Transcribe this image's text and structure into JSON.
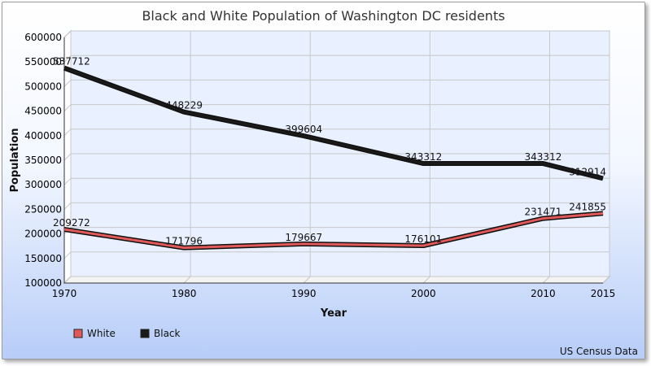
{
  "chart_data": {
    "type": "line",
    "title": "Black and White Population of Washington DC residents",
    "xlabel": "Year",
    "ylabel": "Population",
    "credits": "US Census Data",
    "x": [
      1970,
      1980,
      1990,
      2000,
      2010,
      2015
    ],
    "xlim": [
      1970,
      2015
    ],
    "ylim": [
      100000,
      600000
    ],
    "yticks": [
      100000,
      150000,
      200000,
      250000,
      300000,
      350000,
      400000,
      450000,
      500000,
      550000,
      600000
    ],
    "grid": true,
    "legend": "bottom-left",
    "series": [
      {
        "name": "White",
        "color": "#e05a5a",
        "values": [
          209272,
          171796,
          179667,
          176101,
          231471,
          241855
        ]
      },
      {
        "name": "Black",
        "color": "#1a1a1a",
        "values": [
          537712,
          448229,
          399604,
          343312,
          343312,
          312914
        ]
      }
    ]
  }
}
